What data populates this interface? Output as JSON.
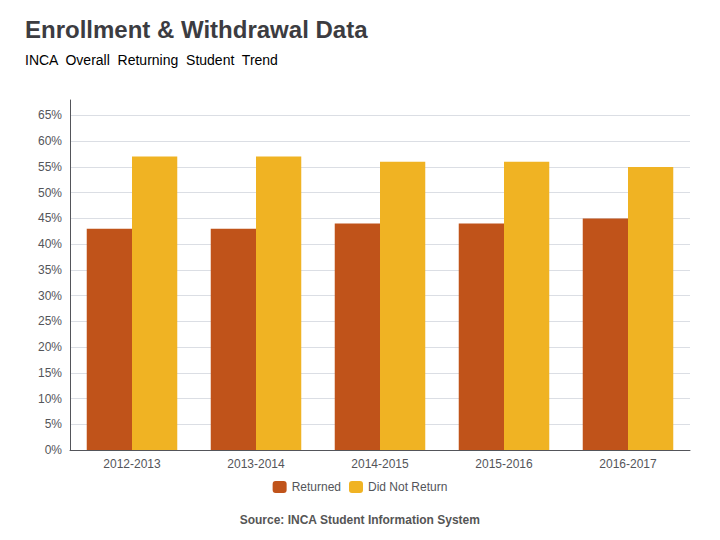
{
  "chart_data": {
    "type": "bar",
    "title": "Enrollment & Withdrawal Data",
    "subtitle": "INCA  Overall  Returning  Student  Trend",
    "annotations": [
      "Source: INCA Student Information System"
    ],
    "categories": [
      "2012-2013",
      "2013-2014",
      "2014-2015",
      "2015-2016",
      "2016-2017"
    ],
    "series": [
      {
        "name": "Returned",
        "color": "#C0531A",
        "values": [
          0.43,
          0.43,
          0.44,
          0.44,
          0.45
        ]
      },
      {
        "name": "Did Not Return",
        "color": "#F0B323",
        "values": [
          0.57,
          0.57,
          0.56,
          0.56,
          0.55
        ]
      }
    ],
    "ylim": [
      0,
      0.68
    ],
    "yticks": [
      {
        "value": 0.0,
        "label": "0%"
      },
      {
        "value": 0.05,
        "label": "5%"
      },
      {
        "value": 0.1,
        "label": "10%"
      },
      {
        "value": 0.15,
        "label": "15%"
      },
      {
        "value": 0.2,
        "label": "20%"
      },
      {
        "value": 0.25,
        "label": "25%"
      },
      {
        "value": 0.3,
        "label": "30%"
      },
      {
        "value": 0.35,
        "label": "35%"
      },
      {
        "value": 0.4,
        "label": "40%"
      },
      {
        "value": 0.45,
        "label": "45%"
      },
      {
        "value": 0.5,
        "label": "50%"
      },
      {
        "value": 0.55,
        "label": "55%"
      },
      {
        "value": 0.6,
        "label": "60%"
      },
      {
        "value": 0.65,
        "label": "65%"
      }
    ],
    "grid": true,
    "legend": "bottom"
  }
}
